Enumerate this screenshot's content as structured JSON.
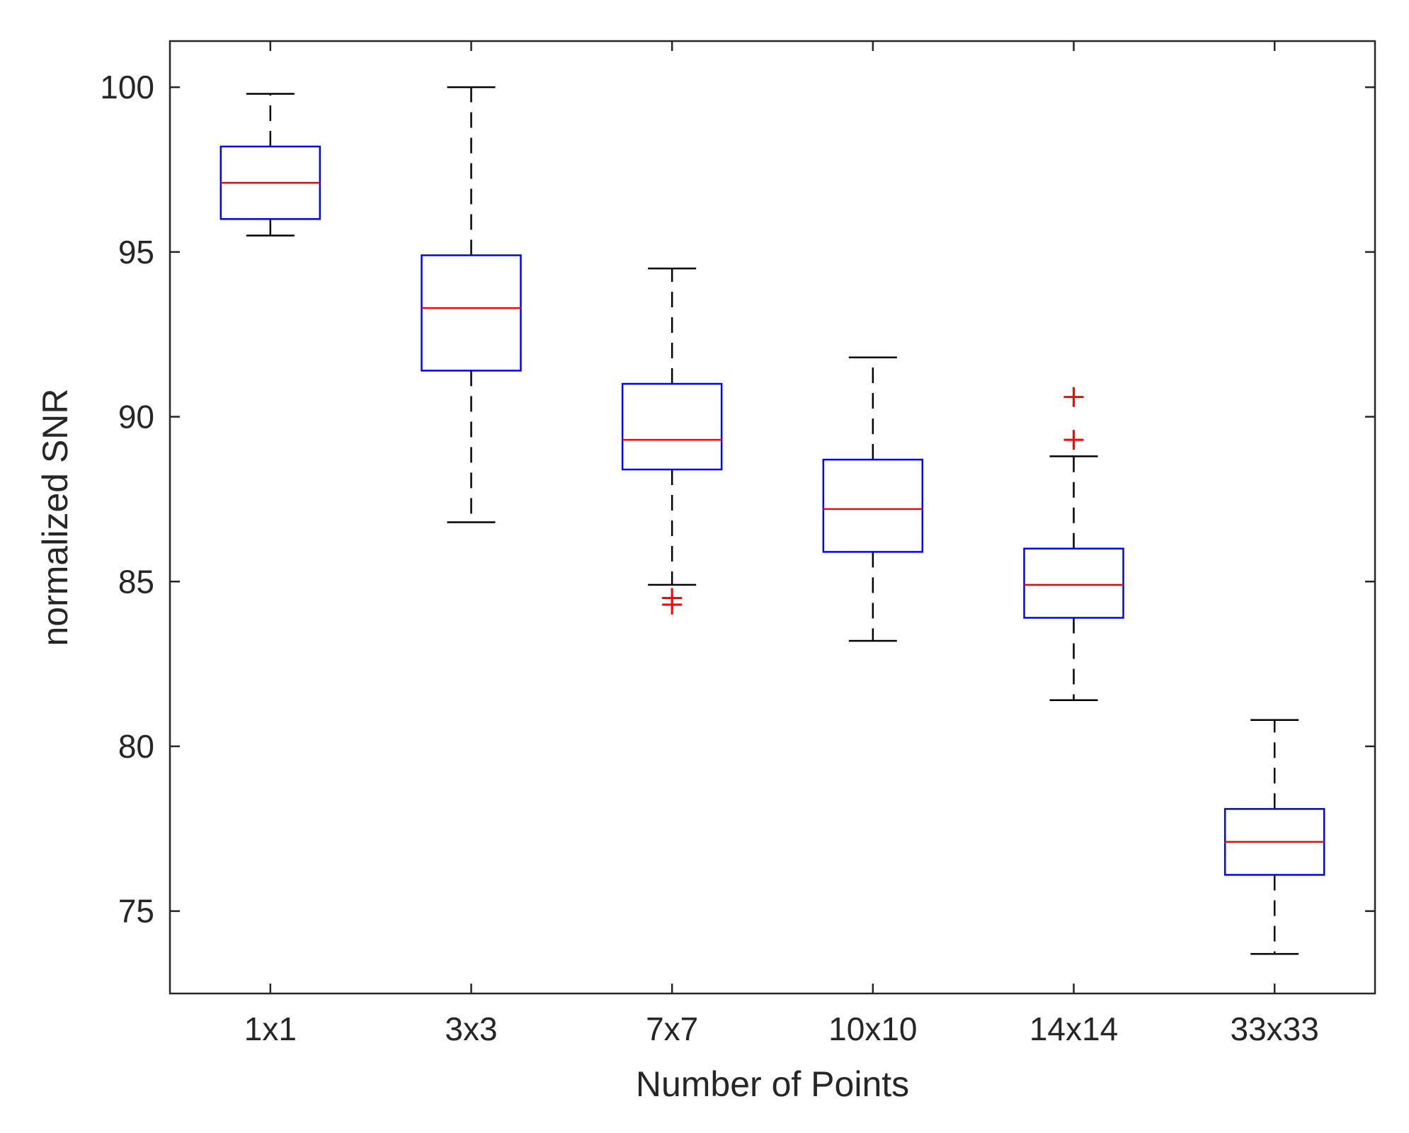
{
  "chart_data": {
    "type": "boxplot",
    "title": "",
    "xlabel": "Number of Points",
    "ylabel": "normalized SNR",
    "ylim": [
      72.5,
      101.4
    ],
    "yticks": [
      75,
      80,
      85,
      90,
      95,
      100
    ],
    "categories": [
      "1x1",
      "3x3",
      "7x7",
      "10x10",
      "14x14",
      "33x33"
    ],
    "boxes": [
      {
        "label": "1x1",
        "whisker_low": 95.5,
        "q1": 96.0,
        "median": 97.1,
        "q3": 98.2,
        "whisker_high": 99.8,
        "outliers": []
      },
      {
        "label": "3x3",
        "whisker_low": 86.8,
        "q1": 91.4,
        "median": 93.3,
        "q3": 94.9,
        "whisker_high": 100.0,
        "outliers": []
      },
      {
        "label": "7x7",
        "whisker_low": 84.9,
        "q1": 88.4,
        "median": 89.3,
        "q3": 91.0,
        "whisker_high": 94.5,
        "outliers": [
          84.5,
          84.3
        ]
      },
      {
        "label": "10x10",
        "whisker_low": 83.2,
        "q1": 85.9,
        "median": 87.2,
        "q3": 88.7,
        "whisker_high": 91.8,
        "outliers": []
      },
      {
        "label": "14x14",
        "whisker_low": 81.4,
        "q1": 83.9,
        "median": 84.9,
        "q3": 86.0,
        "whisker_high": 88.8,
        "outliers": [
          90.6,
          89.3
        ]
      },
      {
        "label": "33x33",
        "whisker_low": 73.7,
        "q1": 76.1,
        "median": 77.1,
        "q3": 78.1,
        "whisker_high": 80.8,
        "outliers": []
      }
    ],
    "grid": false,
    "legend": "none"
  },
  "colors": {
    "box": "#0000ff",
    "median": "#ff0000",
    "whisker": "#000000",
    "outlier": "#ff0000",
    "axis": "#262626"
  }
}
